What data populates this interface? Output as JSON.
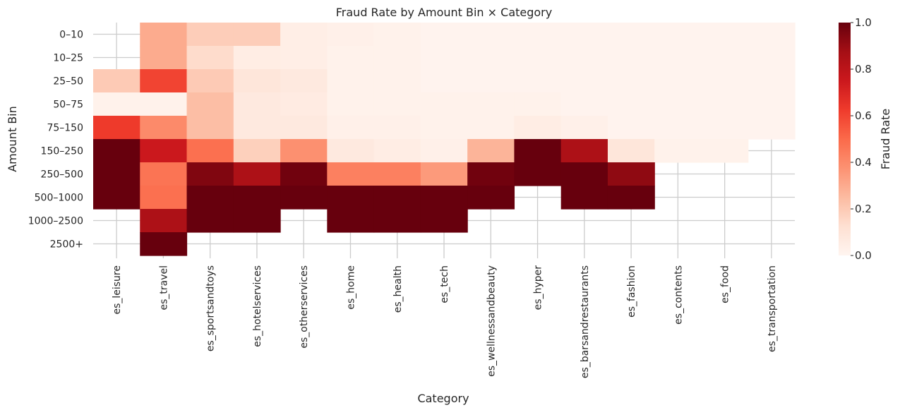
{
  "chart_data": {
    "type": "heatmap",
    "title": "Fraud Rate by Amount Bin × Category",
    "xlabel": "Category",
    "ylabel": "Amount Bin",
    "x_categories": [
      "es_leisure",
      "es_travel",
      "es_sportsandtoys",
      "es_hotelservices",
      "es_otherservices",
      "es_home",
      "es_health",
      "es_tech",
      "es_wellnessandbeauty",
      "es_hyper",
      "es_barsandrestaurants",
      "es_fashion",
      "es_contents",
      "es_food",
      "es_transportation"
    ],
    "y_categories": [
      "0–10",
      "10–25",
      "25–50",
      "50–75",
      "75–150",
      "150–250",
      "250–500",
      "500–1000",
      "1000–2500",
      "2500+"
    ],
    "values": [
      [
        null,
        0.3,
        0.19,
        0.19,
        0.04,
        0.03,
        0.02,
        0.01,
        0.01,
        0.01,
        0.01,
        0.01,
        0.01,
        0.01,
        0.01
      ],
      [
        null,
        0.3,
        0.14,
        0.05,
        0.04,
        0.02,
        0.02,
        0.01,
        0.01,
        0.01,
        0.01,
        0.01,
        0.01,
        0.01,
        0.01
      ],
      [
        0.2,
        0.6,
        0.2,
        0.09,
        0.07,
        0.02,
        0.02,
        0.01,
        0.01,
        0.01,
        0.01,
        0.01,
        0.01,
        0.01,
        0.01
      ],
      [
        0.02,
        0.02,
        0.24,
        0.07,
        0.06,
        0.02,
        0.02,
        0.02,
        0.02,
        0.02,
        0.01,
        0.01,
        0.01,
        0.01,
        0.01
      ],
      [
        0.63,
        0.4,
        0.24,
        0.07,
        0.07,
        0.03,
        0.03,
        0.02,
        0.02,
        0.05,
        0.03,
        0.01,
        0.01,
        0.01,
        0.01
      ],
      [
        1.0,
        0.75,
        0.48,
        0.18,
        0.38,
        0.07,
        0.05,
        0.03,
        0.27,
        1.0,
        0.85,
        0.09,
        0.02,
        0.02,
        null
      ],
      [
        1.0,
        0.47,
        0.95,
        0.85,
        0.98,
        0.43,
        0.43,
        0.35,
        0.98,
        1.0,
        1.0,
        0.92,
        null,
        null,
        null
      ],
      [
        1.0,
        0.48,
        1.0,
        1.0,
        1.0,
        1.0,
        1.0,
        1.0,
        1.0,
        null,
        1.0,
        1.0,
        null,
        null,
        null
      ],
      [
        null,
        0.85,
        1.0,
        1.0,
        null,
        1.0,
        1.0,
        1.0,
        null,
        null,
        null,
        null,
        null,
        null,
        null
      ],
      [
        null,
        1.0,
        null,
        null,
        null,
        null,
        null,
        null,
        null,
        null,
        null,
        null,
        null,
        null,
        null
      ]
    ],
    "vmin": 0,
    "vmax": 1,
    "colormap": "Reds",
    "colorbar": {
      "label": "Fraud Rate",
      "ticks": [
        "0.0",
        "0.2",
        "0.4",
        "0.6",
        "0.8",
        "1.0"
      ]
    },
    "grid": true,
    "grid_color": "#cccccc"
  }
}
